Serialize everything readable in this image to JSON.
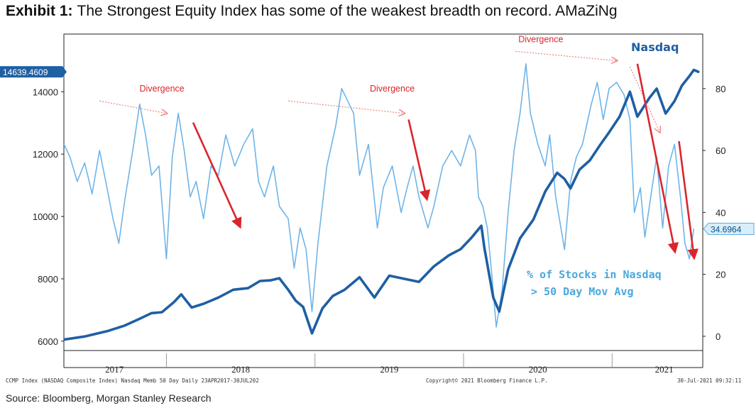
{
  "title": {
    "exhibit": "Exhibit 1:",
    "text": "The Strongest Equity Index has some of the weakest breadth on record. AMaZiNg"
  },
  "footer": {
    "left_text": "CCMP Index (NASDAQ Composite Index) Nasdaq Memb 50 Day  Daily 23APR2017-30JUL202",
    "center_text": "Copyright© 2021 Bloomberg Finance L.P.",
    "right_text": "30-Jul-2021 09:32:11"
  },
  "source": "Source: Bloomberg, Morgan Stanley Research",
  "colors": {
    "nasdaq": "#1f5fa3",
    "breadth": "#6fb4e8",
    "arrow_red": "#d9262c",
    "dotted_red": "#e8867f",
    "nasdaq_label": "#1f5fa3",
    "breadth_label": "#4aa8dd",
    "frame": "#222222"
  },
  "chart_data": {
    "type": "line",
    "x_tick_labels": [
      "2017",
      "2018",
      "2019",
      "2020",
      "2021"
    ],
    "y_left": {
      "ticks": [
        6000,
        8000,
        10000,
        12000,
        14000
      ],
      "range": [
        5700,
        15850
      ]
    },
    "y_right": {
      "ticks": [
        0,
        20,
        40,
        60,
        80
      ],
      "range": [
        -4.6,
        97.6
      ]
    },
    "last_values": {
      "nasdaq": "14639.4609",
      "breadth": "34.6964"
    },
    "series": [
      {
        "name": "Nasdaq",
        "axis": "left",
        "points": [
          [
            2017.31,
            6050
          ],
          [
            2017.45,
            6150
          ],
          [
            2017.6,
            6320
          ],
          [
            2017.72,
            6500
          ],
          [
            2017.82,
            6720
          ],
          [
            2017.9,
            6900
          ],
          [
            2017.97,
            6930
          ],
          [
            2018.05,
            7250
          ],
          [
            2018.1,
            7500
          ],
          [
            2018.17,
            7080
          ],
          [
            2018.25,
            7200
          ],
          [
            2018.35,
            7400
          ],
          [
            2018.45,
            7650
          ],
          [
            2018.55,
            7700
          ],
          [
            2018.63,
            7930
          ],
          [
            2018.7,
            7950
          ],
          [
            2018.76,
            8020
          ],
          [
            2018.82,
            7650
          ],
          [
            2018.87,
            7300
          ],
          [
            2018.92,
            7100
          ],
          [
            2018.98,
            6250
          ],
          [
            2019.05,
            7050
          ],
          [
            2019.12,
            7450
          ],
          [
            2019.2,
            7650
          ],
          [
            2019.3,
            8050
          ],
          [
            2019.4,
            7400
          ],
          [
            2019.5,
            8100
          ],
          [
            2019.6,
            8000
          ],
          [
            2019.7,
            7900
          ],
          [
            2019.8,
            8400
          ],
          [
            2019.9,
            8750
          ],
          [
            2019.98,
            8950
          ],
          [
            2020.05,
            9300
          ],
          [
            2020.12,
            9700
          ],
          [
            2020.14,
            9000
          ],
          [
            2020.2,
            7400
          ],
          [
            2020.24,
            6950
          ],
          [
            2020.3,
            8300
          ],
          [
            2020.38,
            9300
          ],
          [
            2020.47,
            9900
          ],
          [
            2020.55,
            10800
          ],
          [
            2020.63,
            11400
          ],
          [
            2020.68,
            11200
          ],
          [
            2020.72,
            10900
          ],
          [
            2020.78,
            11500
          ],
          [
            2020.85,
            11800
          ],
          [
            2020.92,
            12300
          ],
          [
            2020.98,
            12700
          ],
          [
            2021.05,
            13200
          ],
          [
            2021.12,
            14000
          ],
          [
            2021.17,
            13200
          ],
          [
            2021.25,
            13800
          ],
          [
            2021.3,
            14100
          ],
          [
            2021.36,
            13300
          ],
          [
            2021.42,
            13700
          ],
          [
            2021.47,
            14200
          ],
          [
            2021.52,
            14500
          ],
          [
            2021.55,
            14700
          ],
          [
            2021.58,
            14639
          ]
        ]
      },
      {
        "name": "% of Stocks in Nasdaq > 50 Day Mov Avg",
        "axis": "right",
        "points": [
          [
            2017.31,
            62
          ],
          [
            2017.35,
            58
          ],
          [
            2017.4,
            50
          ],
          [
            2017.45,
            56
          ],
          [
            2017.5,
            46
          ],
          [
            2017.55,
            60
          ],
          [
            2017.6,
            48
          ],
          [
            2017.64,
            38
          ],
          [
            2017.68,
            30
          ],
          [
            2017.72,
            44
          ],
          [
            2017.78,
            62
          ],
          [
            2017.82,
            75
          ],
          [
            2017.86,
            65
          ],
          [
            2017.9,
            52
          ],
          [
            2017.95,
            55
          ],
          [
            2018.0,
            25
          ],
          [
            2018.04,
            58
          ],
          [
            2018.08,
            72
          ],
          [
            2018.12,
            60
          ],
          [
            2018.16,
            45
          ],
          [
            2018.2,
            50
          ],
          [
            2018.25,
            38
          ],
          [
            2018.3,
            55
          ],
          [
            2018.35,
            52
          ],
          [
            2018.4,
            65
          ],
          [
            2018.46,
            55
          ],
          [
            2018.52,
            62
          ],
          [
            2018.58,
            67
          ],
          [
            2018.62,
            50
          ],
          [
            2018.66,
            45
          ],
          [
            2018.72,
            55
          ],
          [
            2018.76,
            42
          ],
          [
            2018.82,
            38
          ],
          [
            2018.86,
            22
          ],
          [
            2018.9,
            35
          ],
          [
            2018.94,
            28
          ],
          [
            2018.98,
            8
          ],
          [
            2019.02,
            30
          ],
          [
            2019.08,
            55
          ],
          [
            2019.14,
            68
          ],
          [
            2019.18,
            80
          ],
          [
            2019.22,
            76
          ],
          [
            2019.26,
            72
          ],
          [
            2019.3,
            52
          ],
          [
            2019.36,
            62
          ],
          [
            2019.42,
            35
          ],
          [
            2019.46,
            48
          ],
          [
            2019.52,
            55
          ],
          [
            2019.58,
            40
          ],
          [
            2019.62,
            48
          ],
          [
            2019.66,
            55
          ],
          [
            2019.7,
            45
          ],
          [
            2019.76,
            35
          ],
          [
            2019.8,
            42
          ],
          [
            2019.86,
            55
          ],
          [
            2019.92,
            60
          ],
          [
            2019.98,
            55
          ],
          [
            2020.04,
            65
          ],
          [
            2020.08,
            60
          ],
          [
            2020.1,
            45
          ],
          [
            2020.13,
            42
          ],
          [
            2020.16,
            35
          ],
          [
            2020.19,
            20
          ],
          [
            2020.22,
            3
          ],
          [
            2020.26,
            15
          ],
          [
            2020.3,
            40
          ],
          [
            2020.34,
            60
          ],
          [
            2020.38,
            72
          ],
          [
            2020.42,
            88
          ],
          [
            2020.45,
            72
          ],
          [
            2020.5,
            62
          ],
          [
            2020.55,
            55
          ],
          [
            2020.58,
            65
          ],
          [
            2020.62,
            45
          ],
          [
            2020.68,
            28
          ],
          [
            2020.72,
            50
          ],
          [
            2020.76,
            58
          ],
          [
            2020.8,
            62
          ],
          [
            2020.86,
            75
          ],
          [
            2020.9,
            82
          ],
          [
            2020.94,
            70
          ],
          [
            2020.98,
            80
          ],
          [
            2021.03,
            82
          ],
          [
            2021.08,
            78
          ],
          [
            2021.12,
            70
          ],
          [
            2021.15,
            40
          ],
          [
            2021.19,
            48
          ],
          [
            2021.22,
            32
          ],
          [
            2021.26,
            45
          ],
          [
            2021.3,
            58
          ],
          [
            2021.34,
            35
          ],
          [
            2021.38,
            55
          ],
          [
            2021.42,
            62
          ],
          [
            2021.46,
            45
          ],
          [
            2021.49,
            30
          ],
          [
            2021.52,
            25
          ],
          [
            2021.55,
            34.7
          ]
        ]
      }
    ],
    "annotations": [
      {
        "text": "Divergence",
        "x": 2017.97,
        "y_right": 79
      },
      {
        "text": "Divergence",
        "x": 2019.52,
        "y_right": 79
      },
      {
        "text": "Divergence",
        "x": 2020.52,
        "y_right": 95
      }
    ],
    "series_labels": {
      "nasdaq": "Nasdaq",
      "breadth_line1": "% of Stocks in Nasdaq",
      "breadth_line2": "> 50 Day Mov Avg"
    }
  }
}
